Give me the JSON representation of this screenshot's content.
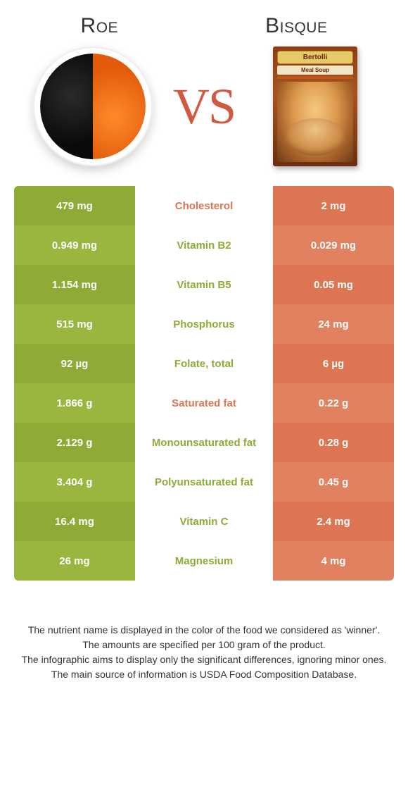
{
  "foods": {
    "left": {
      "name": "Roe",
      "color": "#8eab35",
      "color_alt": "#99b63e"
    },
    "right": {
      "name": "Bisque",
      "color": "#de7552",
      "color_alt": "#e2815f"
    }
  },
  "vs_label": "VS",
  "vs_color": "#d1593f",
  "table": {
    "label_fontsize": 15,
    "rows": [
      {
        "nutrient": "Cholesterol",
        "left": "479 mg",
        "right": "2 mg",
        "winner": "right"
      },
      {
        "nutrient": "Vitamin B2",
        "left": "0.949 mg",
        "right": "0.029 mg",
        "winner": "left"
      },
      {
        "nutrient": "Vitamin B5",
        "left": "1.154 mg",
        "right": "0.05 mg",
        "winner": "left"
      },
      {
        "nutrient": "Phosphorus",
        "left": "515 mg",
        "right": "24 mg",
        "winner": "left"
      },
      {
        "nutrient": "Folate, total",
        "left": "92 µg",
        "right": "6 µg",
        "winner": "left"
      },
      {
        "nutrient": "Saturated fat",
        "left": "1.866 g",
        "right": "0.22 g",
        "winner": "right"
      },
      {
        "nutrient": "Monounsaturated fat",
        "left": "2.129 g",
        "right": "0.28 g",
        "winner": "left"
      },
      {
        "nutrient": "Polyunsaturated fat",
        "left": "3.404 g",
        "right": "0.45 g",
        "winner": "left"
      },
      {
        "nutrient": "Vitamin C",
        "left": "16.4 mg",
        "right": "2.4 mg",
        "winner": "left"
      },
      {
        "nutrient": "Magnesium",
        "left": "26 mg",
        "right": "4 mg",
        "winner": "left"
      }
    ]
  },
  "product_box": {
    "brand": "Bertolli",
    "line": "Meal Soup"
  },
  "footer_lines": [
    "The nutrient name is displayed in the color of the food we considered as 'winner'.",
    "The amounts are specified per 100 gram of the product.",
    "The infographic aims to display only the significant differences, ignoring minor ones.",
    "The main source of information is USDA Food Composition Database."
  ]
}
